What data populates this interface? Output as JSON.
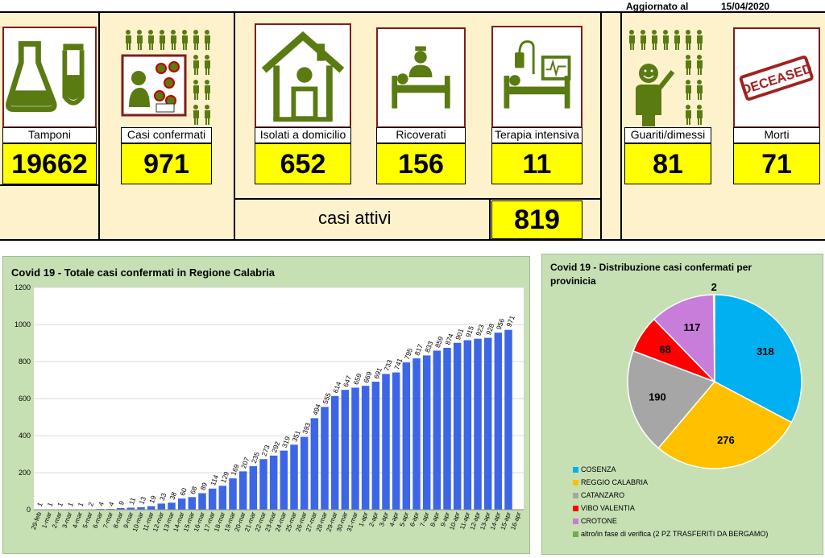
{
  "header": {
    "updated_label": "Aggiornato al",
    "updated_date": "15/04/2020"
  },
  "tiles": {
    "tamponi": {
      "label": "Tamponi",
      "value": "19662",
      "icon": "lab-flask-icon"
    },
    "confermati": {
      "label": "Casi confermati",
      "value": "971",
      "icon": "virus-spread-icon"
    },
    "isolati": {
      "label": "Isolati a domicilio",
      "value": "652",
      "icon": "house-icon"
    },
    "ricoverati": {
      "label": "Ricoverati",
      "value": "156",
      "icon": "hospital-bed-icon"
    },
    "terapia": {
      "label": "Terapia intensiva",
      "value": "11",
      "icon": "icu-bed-icon"
    },
    "guariti": {
      "label": "Guariti/dimessi",
      "value": "81",
      "icon": "recovered-person-icon"
    },
    "morti": {
      "label": "Morti",
      "value": "71",
      "icon": "deceased-stamp-icon"
    }
  },
  "deceased_stamp_text": "DECEASED",
  "active": {
    "label": "casi attivi",
    "value": "819"
  },
  "colors": {
    "banner_bg": "#fdf2cc",
    "value_bg": "#ffff00",
    "icon_green": "#5a7a12",
    "icon_border": "#7f1d1d",
    "chart_bg": "#c6e0b4",
    "bar": "#3c66e6"
  },
  "chart_data": [
    {
      "type": "bar",
      "title": "Covid 19 - Totale casi confermati in Regione Calabria",
      "xlabel": "",
      "ylabel": "",
      "ylim": [
        0,
        1200
      ],
      "yticks": [
        0,
        200,
        400,
        600,
        800,
        1000,
        1200
      ],
      "grid": true,
      "categories": [
        "29-feb",
        "1-mar",
        "2-mar",
        "3-mar",
        "4-mar",
        "5-mar",
        "6-mar",
        "7-mar",
        "8-mar",
        "9-mar",
        "10-mar",
        "11-mar",
        "12-mar",
        "13-mar",
        "14-mar",
        "15-mar",
        "16-mar",
        "17-mar",
        "18-mar",
        "19-mar",
        "20-mar",
        "21-mar",
        "22-mar",
        "23-mar",
        "24-mar",
        "25-mar",
        "26-mar",
        "27-mar",
        "28-mar",
        "29-mar",
        "30-mar",
        "31-mar",
        "1-apr",
        "2-apr",
        "3-apr",
        "4-apr",
        "5-apr",
        "6-apr",
        "7-apr",
        "8-apr",
        "9-apr",
        "10-apr",
        "11-apr",
        "12-apr",
        "13-apr",
        "14-apr",
        "15-apr",
        "16-apr"
      ],
      "values": [
        1,
        1,
        1,
        1,
        1,
        2,
        4,
        4,
        9,
        11,
        13,
        19,
        33,
        38,
        60,
        68,
        89,
        114,
        129,
        169,
        207,
        235,
        273,
        292,
        319,
        351,
        393,
        494,
        555,
        614,
        647,
        659,
        669,
        691,
        733,
        741,
        795,
        817,
        833,
        859,
        874,
        901,
        915,
        923,
        928,
        956,
        971,
        null
      ]
    },
    {
      "type": "pie",
      "title": "Covid 19 - Distribuzione casi confermati per provinicia",
      "legend_position": "bottom-left",
      "slices": [
        {
          "name": "COSENZA",
          "value": 318,
          "color": "#00b0f0"
        },
        {
          "name": "REGGIO CALABRIA",
          "value": 276,
          "color": "#ffc000"
        },
        {
          "name": "CATANZARO",
          "value": 190,
          "color": "#a6a6a6"
        },
        {
          "name": "VIBO VALENTIA",
          "value": 68,
          "color": "#ff0000"
        },
        {
          "name": "CROTONE",
          "value": 117,
          "color": "#c77dd9"
        },
        {
          "name": "altro/in fase di verifica (2 PZ TRASFERITI DA BERGAMO)",
          "value": 2,
          "color": "#70ad47"
        }
      ]
    }
  ]
}
